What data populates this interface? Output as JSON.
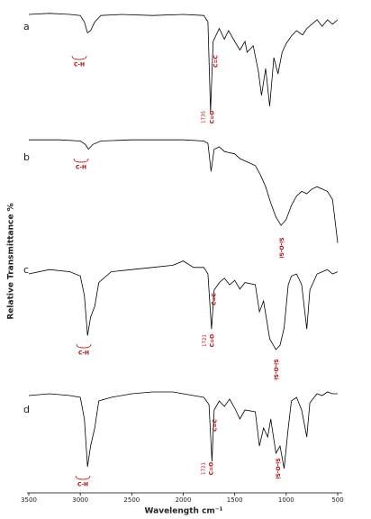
{
  "chart_data": {
    "type": "line",
    "y_label": "Relative Transmittance %",
    "x_label": "Wavelength cm⁻¹",
    "xlim": [
      3500,
      500
    ],
    "xticks": [
      3500,
      3000,
      2500,
      2000,
      1500,
      1000,
      500
    ],
    "series": [
      {
        "name": "a",
        "color": "#000000",
        "ylim": [
          0,
          100
        ],
        "x": [
          3500,
          3300,
          3100,
          3000,
          2960,
          2930,
          2900,
          2860,
          2800,
          2600,
          2300,
          2000,
          1800,
          1760,
          1735,
          1710,
          1650,
          1600,
          1560,
          1500,
          1450,
          1400,
          1380,
          1320,
          1270,
          1240,
          1200,
          1160,
          1120,
          1080,
          1040,
          1000,
          950,
          900,
          840,
          800,
          750,
          700,
          650,
          600,
          550,
          500
        ],
        "values": [
          95,
          96,
          95,
          94,
          88,
          78,
          80,
          88,
          94,
          95,
          94,
          95,
          94,
          88,
          5,
          70,
          82,
          72,
          80,
          70,
          62,
          70,
          60,
          66,
          42,
          20,
          45,
          10,
          55,
          40,
          60,
          68,
          75,
          80,
          76,
          82,
          86,
          90,
          84,
          90,
          86,
          90
        ],
        "annotations": [
          "C-H",
          "C=C",
          "C=O",
          "1735"
        ]
      },
      {
        "name": "b",
        "color": "#000000",
        "ylim": [
          0,
          100
        ],
        "x": [
          3500,
          3200,
          3000,
          2950,
          2920,
          2880,
          2800,
          2500,
          2200,
          2000,
          1800,
          1760,
          1730,
          1700,
          1650,
          1600,
          1500,
          1450,
          1400,
          1300,
          1250,
          1200,
          1150,
          1100,
          1050,
          1000,
          950,
          900,
          850,
          800,
          750,
          700,
          650,
          600,
          550,
          500
        ],
        "values": [
          96,
          96,
          95,
          92,
          88,
          92,
          95,
          96,
          96,
          96,
          95,
          93,
          69,
          88,
          90,
          86,
          84,
          80,
          78,
          74,
          66,
          56,
          42,
          30,
          23,
          28,
          40,
          48,
          52,
          50,
          54,
          56,
          54,
          52,
          45,
          8
        ],
        "annotations": [
          "C-H",
          "Si-O-Si"
        ]
      },
      {
        "name": "c",
        "color": "#000000",
        "ylim": [
          0,
          100
        ],
        "x": [
          3500,
          3300,
          3100,
          3000,
          2960,
          2930,
          2900,
          2860,
          2820,
          2700,
          2500,
          2300,
          2100,
          2000,
          1900,
          1800,
          1760,
          1725,
          1700,
          1650,
          1600,
          1550,
          1500,
          1450,
          1400,
          1300,
          1260,
          1220,
          1160,
          1100,
          1060,
          1020,
          980,
          950,
          900,
          850,
          800,
          770,
          700,
          650,
          600,
          550,
          500
        ],
        "values": [
          80,
          84,
          82,
          78,
          60,
          23,
          40,
          50,
          72,
          82,
          84,
          86,
          88,
          92,
          86,
          86,
          80,
          29,
          65,
          72,
          76,
          70,
          74,
          66,
          72,
          70,
          45,
          55,
          20,
          10,
          14,
          30,
          70,
          78,
          80,
          70,
          29,
          65,
          80,
          82,
          84,
          80,
          82
        ],
        "annotations": [
          "C-H",
          "C=C",
          "C=O",
          "1721",
          "Si-O-Si"
        ]
      },
      {
        "name": "d",
        "color": "#000000",
        "ylim": [
          0,
          100
        ],
        "x": [
          3500,
          3300,
          3100,
          3000,
          2960,
          2930,
          2900,
          2860,
          2820,
          2700,
          2500,
          2300,
          2100,
          2000,
          1900,
          1800,
          1750,
          1721,
          1700,
          1650,
          1600,
          1550,
          1500,
          1450,
          1400,
          1300,
          1260,
          1220,
          1180,
          1150,
          1100,
          1060,
          1020,
          980,
          950,
          900,
          850,
          800,
          770,
          700,
          650,
          600,
          550,
          500
        ],
        "values": [
          86,
          88,
          86,
          84,
          60,
          7,
          30,
          50,
          80,
          84,
          88,
          90,
          90,
          88,
          86,
          84,
          76,
          13,
          70,
          80,
          74,
          82,
          72,
          60,
          70,
          68,
          30,
          50,
          40,
          60,
          22,
          30,
          5,
          50,
          80,
          84,
          70,
          40,
          78,
          88,
          86,
          90,
          88,
          88
        ],
        "annotations": [
          "C-H",
          "C=C",
          "C=O",
          "1721",
          "Si-O-Si"
        ]
      }
    ]
  }
}
